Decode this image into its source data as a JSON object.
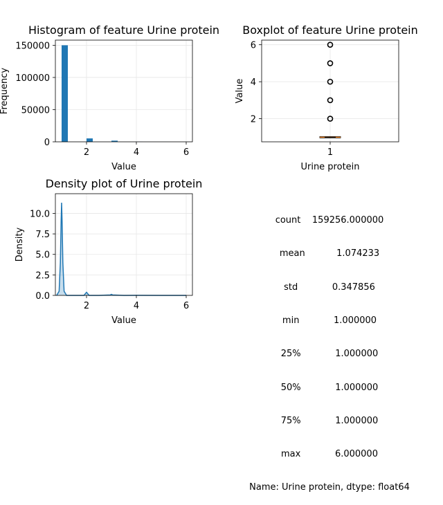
{
  "chart_data": [
    {
      "type": "bar",
      "title": "Histogram of feature Urine protein",
      "xlabel": "Value",
      "ylabel": "Frequency",
      "xlim": [
        0.75,
        6.25
      ],
      "ylim": [
        0,
        158000
      ],
      "xticks": [
        "2",
        "4",
        "6"
      ],
      "yticks": [
        "0",
        "50000",
        "100000",
        "150000"
      ],
      "grid": true,
      "bars": [
        {
          "x0": 1.0,
          "x1": 1.25,
          "value": 150000
        },
        {
          "x0": 2.0,
          "x1": 2.25,
          "value": 5300
        },
        {
          "x0": 3.0,
          "x1": 3.25,
          "value": 1800
        },
        {
          "x0": 4.0,
          "x1": 4.25,
          "value": 150
        },
        {
          "x0": 5.0,
          "x1": 5.25,
          "value": 60
        },
        {
          "x0": 5.75,
          "x1": 6.0,
          "value": 40
        }
      ],
      "color": "#1f77b4"
    },
    {
      "type": "box",
      "title": "Boxplot of feature Urine protein",
      "xlabel": "Urine protein",
      "ylabel": "Value",
      "xticks": [
        "1"
      ],
      "yticks": [
        "2",
        "4",
        "6"
      ],
      "ylim": [
        0.75,
        6.25
      ],
      "grid": true,
      "median": 1.0,
      "q1": 1.0,
      "q3": 1.0,
      "whisker_low": 1.0,
      "whisker_high": 1.0,
      "outliers": [
        2,
        3,
        4,
        5,
        6
      ],
      "median_color": "#ff7f0e"
    },
    {
      "type": "area",
      "title": "Density plot of Urine protein",
      "xlabel": "Value",
      "ylabel": "Density",
      "xlim": [
        0.75,
        6.25
      ],
      "ylim": [
        0,
        12.4
      ],
      "xticks": [
        "2",
        "4",
        "6"
      ],
      "yticks": [
        "0.0",
        "2.5",
        "5.0",
        "7.5",
        "10.0"
      ],
      "grid": true,
      "x": [
        0.8,
        0.9,
        0.95,
        0.98,
        1.0,
        1.02,
        1.05,
        1.1,
        1.2,
        1.5,
        1.9,
        1.95,
        2.0,
        2.05,
        2.1,
        2.5,
        2.95,
        3.0,
        3.05,
        3.5,
        4.0,
        5.0,
        6.0
      ],
      "y": [
        0.0,
        0.5,
        4.0,
        9.0,
        11.3,
        9.0,
        4.0,
        0.5,
        0.0,
        0.0,
        0.0,
        0.2,
        0.38,
        0.2,
        0.0,
        0.0,
        0.05,
        0.13,
        0.05,
        0.0,
        0.01,
        0.0,
        0.0
      ],
      "color": "#1f77b4"
    }
  ],
  "stats": {
    "rows": [
      {
        "key": "count",
        "value": "159256.000000"
      },
      {
        "key": "mean",
        "value": "1.074233"
      },
      {
        "key": "std",
        "value": "0.347856"
      },
      {
        "key": "min",
        "value": "1.000000"
      },
      {
        "key": "25%",
        "value": "1.000000"
      },
      {
        "key": "50%",
        "value": "1.000000"
      },
      {
        "key": "75%",
        "value": "1.000000"
      },
      {
        "key": "max",
        "value": "6.000000"
      }
    ],
    "footer": "Name: Urine protein, dtype: float64"
  }
}
